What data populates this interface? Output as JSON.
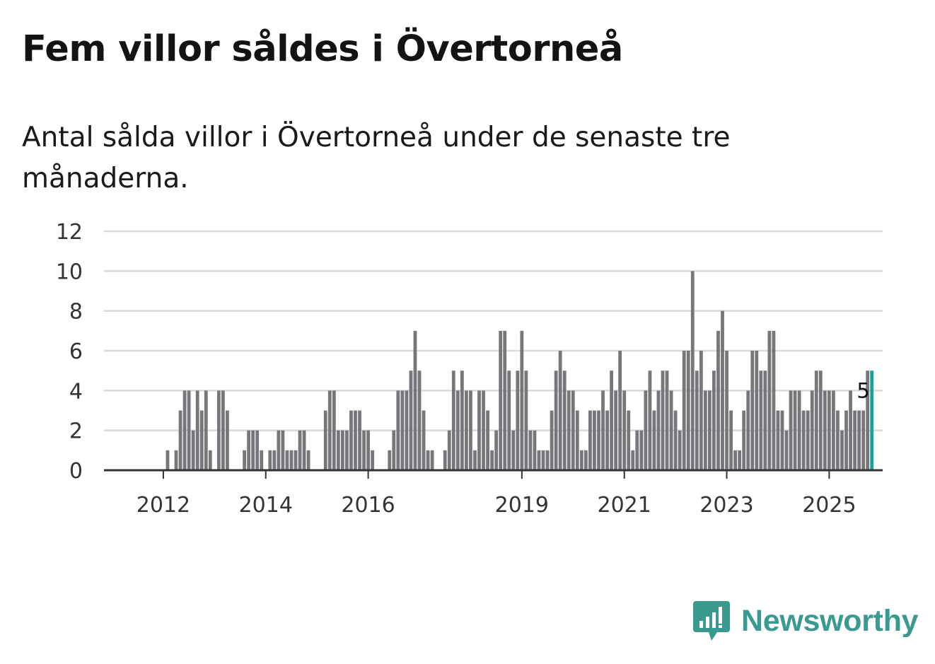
{
  "header": {
    "title": "Fem villor såldes i Övertorneå",
    "subtitle": "Antal sålda villor i Övertorneå under de senaste tre månaderna."
  },
  "brand": {
    "name": "Newsworthy",
    "color": "#3a9a8f"
  },
  "colors": {
    "bar": "#77767a",
    "highlight": "#16a394",
    "grid": "#d9d9d9",
    "axis": "#333333"
  },
  "chart_data": {
    "type": "bar",
    "title": "Fem villor såldes i Övertorneå",
    "xlabel": "",
    "ylabel": "",
    "ylim": [
      0,
      12
    ],
    "yticks": [
      0,
      2,
      4,
      6,
      8,
      10,
      12
    ],
    "grid": true,
    "x_start": "2011-03",
    "frequency": "monthly",
    "xtick_labels": [
      {
        "label": "2012",
        "index": 9
      },
      {
        "label": "2014",
        "index": 33
      },
      {
        "label": "2016",
        "index": 57
      },
      {
        "label": "2019",
        "index": 93
      },
      {
        "label": "2021",
        "index": 117
      },
      {
        "label": "2023",
        "index": 141
      },
      {
        "label": "2025",
        "index": 165
      }
    ],
    "values": [
      0,
      0,
      0,
      0,
      0,
      0,
      0,
      0,
      0,
      0,
      1,
      0,
      1,
      3,
      4,
      4,
      2,
      4,
      3,
      4,
      1,
      0,
      4,
      4,
      3,
      0,
      0,
      0,
      1,
      2,
      2,
      2,
      1,
      0,
      1,
      1,
      2,
      2,
      1,
      1,
      1,
      2,
      2,
      1,
      0,
      0,
      0,
      3,
      4,
      4,
      2,
      2,
      2,
      3,
      3,
      3,
      2,
      2,
      1,
      0,
      0,
      0,
      1,
      2,
      4,
      4,
      4,
      5,
      7,
      5,
      3,
      1,
      1,
      0,
      0,
      1,
      2,
      5,
      4,
      5,
      4,
      4,
      1,
      4,
      4,
      3,
      1,
      2,
      7,
      7,
      5,
      2,
      5,
      7,
      5,
      2,
      2,
      1,
      1,
      1,
      3,
      5,
      6,
      5,
      4,
      4,
      3,
      1,
      1,
      3,
      3,
      3,
      4,
      3,
      5,
      4,
      6,
      4,
      3,
      1,
      2,
      2,
      4,
      5,
      3,
      4,
      5,
      5,
      4,
      3,
      2,
      6,
      6,
      10,
      5,
      6,
      4,
      4,
      5,
      7,
      8,
      6,
      3,
      1,
      1,
      3,
      4,
      6,
      6,
      5,
      5,
      7,
      7,
      3,
      3,
      2,
      4,
      4,
      4,
      3,
      3,
      4,
      5,
      5,
      4,
      4,
      4,
      3,
      2,
      3,
      4,
      3,
      3,
      3,
      5,
      5
    ],
    "highlight_last": true,
    "annotations": [
      {
        "index": 173,
        "text": "5"
      }
    ]
  }
}
